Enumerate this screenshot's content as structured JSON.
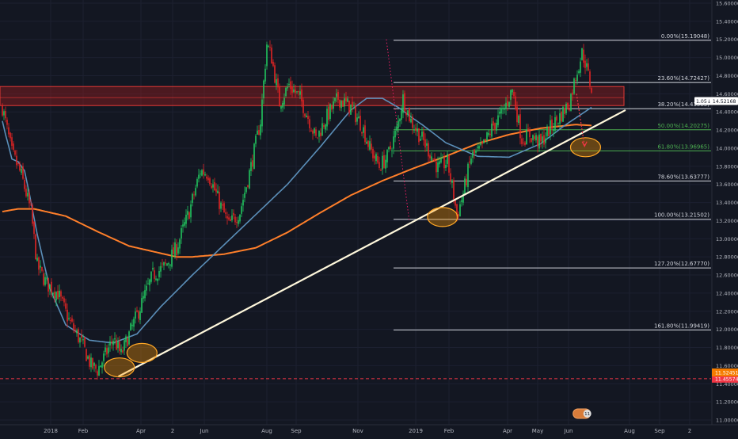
{
  "chart_data": {
    "type": "candlestick",
    "y_axis": {
      "side": "right",
      "ylim": [
        10.98,
        15.64
      ],
      "ticks": [
        "15.60000",
        "15.40000",
        "15.20000",
        "15.00000",
        "14.80000",
        "14.60000",
        "14.40000",
        "14.20000",
        "14.00000",
        "13.80000",
        "13.60000",
        "13.40000",
        "13.20000",
        "13.00000",
        "12.80000",
        "12.60000",
        "12.40000",
        "12.20000",
        "12.00000",
        "11.80000",
        "11.60000",
        "11.40000",
        "11.20000",
        "11.00000"
      ]
    },
    "x_axis": {
      "labels": [
        "2018",
        "Feb",
        "Apr",
        "2",
        "Jun",
        "Aug",
        "Sep",
        "Nov",
        "2019",
        "Feb",
        "Apr",
        "May",
        "Jun",
        "Aug",
        "Sep",
        "2"
      ]
    },
    "price_badges": [
      {
        "label": "1.05↓",
        "value": "14.52168",
        "price": 14.52,
        "bg": "#ffffff",
        "fg": "#131722"
      },
      {
        "label": "",
        "value": "11.45574",
        "price": 11.4557,
        "bg": "#f23645",
        "fg": "#ffffff"
      },
      {
        "label": "",
        "value": "11.52451",
        "price": 11.5245,
        "bg": "#f57c00",
        "fg": "#ffffff"
      }
    ],
    "fibonacci": [
      {
        "label": "0.00%(15.19048)",
        "price": 15.19048,
        "color": "#d1d4dc"
      },
      {
        "label": "23.60%(14.72427)",
        "price": 14.72427,
        "color": "#d1d4dc"
      },
      {
        "label": "38.20%(14.43585)",
        "price": 14.43585,
        "color": "#d1d4dc"
      },
      {
        "label": "50.00%(14.20275)",
        "price": 14.20275,
        "color": "#4caf50"
      },
      {
        "label": "61.80%(13.96965)",
        "price": 13.96965,
        "color": "#4caf50"
      },
      {
        "label": "78.60%(13.63777)",
        "price": 13.63777,
        "color": "#d1d4dc"
      },
      {
        "label": "100.00%(13.21502)",
        "price": 13.21502,
        "color": "#d1d4dc"
      },
      {
        "label": "127.20%(12.67770)",
        "price": 12.6777,
        "color": "#d1d4dc"
      },
      {
        "label": "161.80%(11.99419)",
        "price": 11.99419,
        "color": "#d1d4dc"
      }
    ],
    "resistance_zone": {
      "low": 14.47,
      "high": 14.68,
      "color": "#b71c1c"
    },
    "trendline": {
      "from": {
        "x": "2018-03-09",
        "y": 11.48
      },
      "to": {
        "x": "2019-07-28",
        "y": 14.42
      },
      "color": "#fff8dc"
    },
    "horizontal_lines": [
      {
        "price": 11.4557,
        "color": "#f23645",
        "style": "dashed"
      }
    ],
    "highlight_ellipses": [
      {
        "x": "2018-03-10",
        "y": 11.58
      },
      {
        "x": "2018-04-02",
        "y": 11.74
      },
      {
        "x": "2019-01-26",
        "y": 13.24
      },
      {
        "x": "2019-06-18",
        "y": 14.01
      }
    ],
    "ma_fast": {
      "color": "#5b8fb9",
      "points": [
        [
          0,
          14.3
        ],
        [
          2,
          14.15
        ],
        [
          4,
          14.02
        ],
        [
          6,
          13.88
        ],
        [
          10,
          13.85
        ],
        [
          14,
          13.75
        ],
        [
          17,
          13.5
        ],
        [
          22,
          13.05
        ],
        [
          30,
          12.45
        ],
        [
          40,
          12.05
        ],
        [
          55,
          11.88
        ],
        [
          70,
          11.85
        ],
        [
          85,
          11.95
        ],
        [
          100,
          12.25
        ],
        [
          120,
          12.6
        ],
        [
          135,
          12.85
        ],
        [
          150,
          13.1
        ],
        [
          165,
          13.35
        ],
        [
          180,
          13.6
        ],
        [
          200,
          14.0
        ],
        [
          220,
          14.42
        ],
        [
          230,
          14.55
        ],
        [
          240,
          14.55
        ],
        [
          250,
          14.45
        ],
        [
          260,
          14.32
        ],
        [
          265,
          14.26
        ],
        [
          280,
          14.06
        ],
        [
          300,
          13.91
        ],
        [
          320,
          13.9
        ],
        [
          340,
          14.05
        ],
        [
          355,
          14.25
        ],
        [
          372,
          14.45
        ]
      ]
    },
    "ma_slow": {
      "color": "#ff7f2a",
      "points": [
        [
          0,
          13.3
        ],
        [
          10,
          13.33
        ],
        [
          20,
          13.33
        ],
        [
          40,
          13.25
        ],
        [
          60,
          13.08
        ],
        [
          80,
          12.92
        ],
        [
          100,
          12.84
        ],
        [
          110,
          12.8
        ],
        [
          120,
          12.8
        ],
        [
          140,
          12.83
        ],
        [
          160,
          12.9
        ],
        [
          180,
          13.07
        ],
        [
          200,
          13.28
        ],
        [
          220,
          13.48
        ],
        [
          240,
          13.64
        ],
        [
          260,
          13.78
        ],
        [
          280,
          13.91
        ],
        [
          300,
          14.05
        ],
        [
          320,
          14.15
        ],
        [
          340,
          14.22
        ],
        [
          362,
          14.26
        ],
        [
          372,
          14.25
        ]
      ]
    },
    "price_path": [
      [
        0,
        14.45
      ],
      [
        6,
        13.95
      ],
      [
        12,
        13.7
      ],
      [
        18,
        13.3
      ],
      [
        22,
        12.7
      ],
      [
        28,
        12.5
      ],
      [
        35,
        12.4
      ],
      [
        42,
        12.1
      ],
      [
        50,
        11.85
      ],
      [
        56,
        11.6
      ],
      [
        60,
        11.55
      ],
      [
        66,
        11.75
      ],
      [
        70,
        11.9
      ],
      [
        75,
        11.72
      ],
      [
        79,
        11.9
      ],
      [
        86,
        12.2
      ],
      [
        95,
        12.6
      ],
      [
        103,
        12.7
      ],
      [
        110,
        12.9
      ],
      [
        118,
        13.3
      ],
      [
        125,
        13.75
      ],
      [
        130,
        13.72
      ],
      [
        137,
        13.4
      ],
      [
        143,
        13.15
      ],
      [
        150,
        13.3
      ],
      [
        157,
        13.8
      ],
      [
        163,
        14.3
      ],
      [
        167,
        15.15
      ],
      [
        170,
        15.0
      ],
      [
        175,
        14.5
      ],
      [
        181,
        14.7
      ],
      [
        188,
        14.55
      ],
      [
        194,
        14.3
      ],
      [
        198,
        14.1
      ],
      [
        205,
        14.35
      ],
      [
        212,
        14.55
      ],
      [
        220,
        14.45
      ],
      [
        227,
        14.25
      ],
      [
        232,
        14.0
      ],
      [
        238,
        13.8
      ],
      [
        243,
        13.9
      ],
      [
        249,
        14.2
      ],
      [
        253,
        14.55
      ],
      [
        258,
        14.3
      ],
      [
        265,
        14.1
      ],
      [
        270,
        13.95
      ],
      [
        275,
        13.78
      ],
      [
        281,
        13.85
      ],
      [
        285,
        13.48
      ],
      [
        287,
        13.25
      ],
      [
        291,
        13.5
      ],
      [
        296,
        13.9
      ],
      [
        303,
        14.0
      ],
      [
        310,
        14.25
      ],
      [
        316,
        14.4
      ],
      [
        322,
        14.65
      ],
      [
        328,
        14.1
      ],
      [
        333,
        14.15
      ],
      [
        340,
        14.05
      ],
      [
        345,
        14.2
      ],
      [
        352,
        14.35
      ],
      [
        358,
        14.5
      ],
      [
        362,
        14.8
      ],
      [
        366,
        15.05
      ],
      [
        368,
        14.95
      ],
      [
        372,
        14.65
      ]
    ],
    "forecast_arrow": {
      "from": {
        "x": "2019-06-09",
        "y": 14.6
      },
      "to": {
        "x": "2019-06-17",
        "y": 14.02
      },
      "color": "#f23645"
    },
    "pivot_line": {
      "from": {
        "x": "2018-12-01",
        "y": 15.2
      },
      "to": {
        "x": "2018-12-25",
        "y": 13.21
      },
      "color": "#e91e63"
    },
    "bottom_badges": [
      {
        "x": "2019-06-15",
        "label": "11"
      }
    ]
  }
}
